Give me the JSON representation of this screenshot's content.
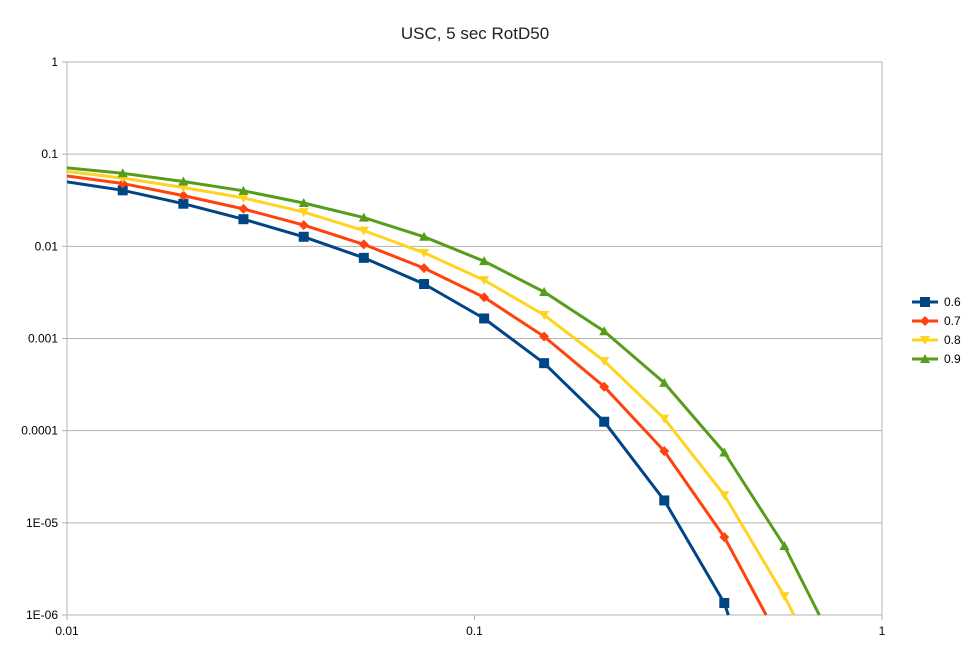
{
  "chart_data": {
    "type": "line",
    "title": "USC, 5 sec RotD50",
    "xlabel": "",
    "ylabel": "",
    "xscale": "log",
    "yscale": "log",
    "xlim": [
      0.01,
      1
    ],
    "ylim": [
      1e-06,
      1
    ],
    "x_tick_labels": [
      "0.01",
      "0.1",
      "1"
    ],
    "y_tick_labels": [
      "1E-06",
      "1E-05",
      "0.0001",
      "0.001",
      "0.01",
      "0.1",
      "1"
    ],
    "grid": "horizontal",
    "legend_position": "right",
    "series": [
      {
        "name": "0.6",
        "color": "#004586",
        "marker": "square",
        "x": [
          0.01,
          0.0137,
          0.0193,
          0.0271,
          0.0381,
          0.0535,
          0.0752,
          0.1056,
          0.1482,
          0.2081,
          0.2922,
          0.4102,
          0.4197
        ],
        "y": [
          0.05,
          0.0405,
          0.029,
          0.0197,
          0.0127,
          0.0075,
          0.0039,
          0.00165,
          0.00054,
          0.000125,
          1.75e-05,
          1.35e-06,
          1e-06
        ]
      },
      {
        "name": "0.7",
        "color": "#ff420e",
        "marker": "diamond",
        "x": [
          0.01,
          0.0137,
          0.0193,
          0.0271,
          0.0381,
          0.0535,
          0.0752,
          0.1056,
          0.1482,
          0.2081,
          0.2922,
          0.4102,
          0.5196
        ],
        "y": [
          0.058,
          0.048,
          0.0355,
          0.0255,
          0.017,
          0.0105,
          0.0058,
          0.0028,
          0.00105,
          0.0003,
          6e-05,
          7e-06,
          1e-06
        ]
      },
      {
        "name": "0.8",
        "color": "#ffd320",
        "marker": "triangle-down",
        "x": [
          0.01,
          0.0137,
          0.0193,
          0.0271,
          0.0381,
          0.0535,
          0.0752,
          0.1056,
          0.1482,
          0.2081,
          0.2922,
          0.4102,
          0.5761,
          0.6078
        ],
        "y": [
          0.065,
          0.055,
          0.0435,
          0.0335,
          0.0235,
          0.0148,
          0.0085,
          0.0043,
          0.0018,
          0.00057,
          0.000135,
          2e-05,
          1.6e-06,
          1e-06
        ]
      },
      {
        "name": "0.9",
        "color": "#579d1c",
        "marker": "triangle-up",
        "x": [
          0.01,
          0.0137,
          0.0193,
          0.0271,
          0.0381,
          0.0535,
          0.0752,
          0.1056,
          0.1482,
          0.2081,
          0.2922,
          0.4102,
          0.5761,
          0.7016
        ],
        "y": [
          0.071,
          0.062,
          0.0505,
          0.04,
          0.0295,
          0.0205,
          0.0127,
          0.0069,
          0.0032,
          0.0012,
          0.00033,
          5.8e-05,
          5.6e-06,
          1e-06
        ]
      }
    ]
  }
}
